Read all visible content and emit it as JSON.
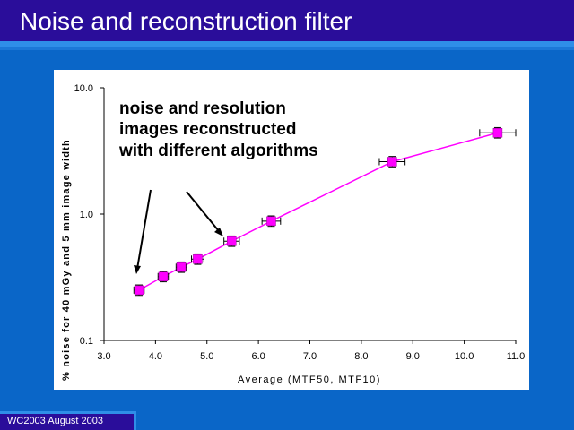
{
  "slide": {
    "title": "Noise and reconstruction filter",
    "footer": "WC2003 August 2003"
  },
  "colors": {
    "background": "#0a66c8",
    "title_bar": "#2a0d9a",
    "series": "#ff00ff"
  },
  "chart_data": {
    "type": "line",
    "xlabel": "Average (MTF50, MTF10)",
    "ylabel": "% noise for 40 mGy and 5 mm image width",
    "x_scale": "linear",
    "y_scale": "log",
    "xlim": [
      3.0,
      11.0
    ],
    "ylim": [
      0.1,
      10.0
    ],
    "x_ticks": [
      "3.0",
      "4.0",
      "5.0",
      "6.0",
      "7.0",
      "8.0",
      "9.0",
      "10.0",
      "11.0"
    ],
    "y_ticks": [
      "0.1",
      "1.0",
      "10.0"
    ],
    "grid": false,
    "annotation": [
      "noise and resolution",
      "images reconstructed",
      "with different algorithms"
    ],
    "series": [
      {
        "x": [
          3.68,
          4.15,
          4.5,
          4.82,
          5.48,
          6.25,
          8.6,
          10.65
        ],
        "y": [
          0.25,
          0.32,
          0.38,
          0.44,
          0.61,
          0.88,
          2.6,
          4.4
        ],
        "x_err": [
          0.1,
          0.1,
          0.1,
          0.12,
          0.15,
          0.18,
          0.25,
          0.35
        ],
        "y_err_rel": [
          0.1,
          0.1,
          0.1,
          0.1,
          0.1,
          0.1,
          0.1,
          0.1
        ]
      }
    ]
  }
}
